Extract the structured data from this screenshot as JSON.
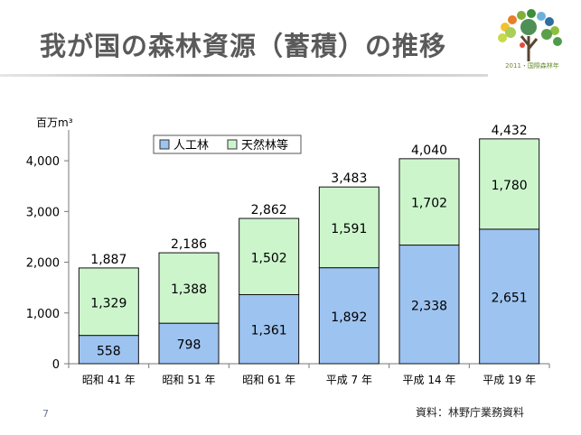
{
  "slide": {
    "title": "我が国の森林資源（蓄積）の推移",
    "page_number": "7",
    "source_note": "資料：林野庁業務資料",
    "logo_caption": "2011・国際森林年"
  },
  "chart_data": {
    "type": "bar",
    "stacked": true,
    "categories": [
      "昭和 41 年",
      "昭和 51 年",
      "昭和 61 年",
      "平成 7 年",
      "平成 14 年",
      "平成 19 年"
    ],
    "series": [
      {
        "name": "人工林",
        "values": [
          558,
          798,
          1361,
          1892,
          2338,
          2651
        ],
        "color": "#9dc3f0"
      },
      {
        "name": "天然林等",
        "values": [
          1329,
          1388,
          1502,
          1591,
          1702,
          1780
        ],
        "color": "#ccf5cc"
      }
    ],
    "totals": [
      "1,887",
      "2,186",
      "2,862",
      "3,483",
      "4,040",
      "4,432"
    ],
    "value_labels": [
      [
        "558",
        "798",
        "1,361",
        "1,892",
        "2,338",
        "2,651"
      ],
      [
        "1,329",
        "1,388",
        "1,502",
        "1,591",
        "1,702",
        "1,780"
      ]
    ],
    "ylabel": "百万m³",
    "ylim": [
      0,
      4500
    ],
    "yticks": [
      0,
      1000,
      2000,
      3000,
      4000
    ],
    "ytick_labels": [
      "0",
      "1,000",
      "2,000",
      "3,000",
      "4,000"
    ],
    "grid": false,
    "legend_position": "top-left"
  }
}
